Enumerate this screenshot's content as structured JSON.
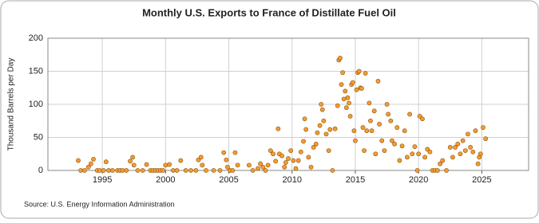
{
  "chart_data": {
    "type": "scatter",
    "title": "Monthly U.S. Exports to France of Distillate Fuel Oil",
    "y_label": "Thousand Barrels per Day",
    "source": "Source: U.S. Energy Information Administration",
    "color": "#f59c2e",
    "grid": true,
    "xlim": [
      1990.7,
      2028.7
    ],
    "xticks": [
      1995,
      2000,
      2005,
      2010,
      2015,
      2020,
      2025
    ],
    "ylim": [
      0,
      200
    ],
    "yticks": [
      0,
      50,
      100,
      150,
      200
    ],
    "x": [
      1993.1,
      1993.3,
      1993.6,
      1993.9,
      1994.1,
      1994.3,
      1994.6,
      1994.8,
      1995.1,
      1995.3,
      1995.5,
      1995.8,
      1996.2,
      1996.4,
      1996.6,
      1996.9,
      1997.2,
      1997.4,
      1997.5,
      1997.8,
      1998.2,
      1998.5,
      1998.8,
      1999.0,
      1999.2,
      1999.4,
      1999.6,
      1999.8,
      2000.0,
      2000.3,
      2000.6,
      2000.9,
      2001.2,
      2001.6,
      2002.0,
      2002.4,
      2002.6,
      2002.8,
      2002.9,
      2003.2,
      2003.8,
      2004.3,
      2004.6,
      2004.8,
      2004.9,
      2005.1,
      2005.3,
      2005.5,
      2005.7,
      2006.6,
      2006.9,
      2007.3,
      2007.5,
      2007.7,
      2007.9,
      2008.1,
      2008.3,
      2008.5,
      2008.7,
      2008.9,
      2009.0,
      2009.2,
      2009.4,
      2009.5,
      2009.7,
      2009.9,
      2010.1,
      2010.3,
      2010.5,
      2010.7,
      2010.9,
      2011.0,
      2011.1,
      2011.3,
      2011.5,
      2011.7,
      2011.9,
      2012.0,
      2012.2,
      2012.3,
      2012.4,
      2012.5,
      2012.7,
      2012.9,
      2013.0,
      2013.2,
      2013.4,
      2013.6,
      2013.7,
      2013.8,
      2013.9,
      2014.0,
      2014.1,
      2014.2,
      2014.3,
      2014.4,
      2014.5,
      2014.6,
      2014.7,
      2014.8,
      2014.9,
      2015.0,
      2015.1,
      2015.2,
      2015.3,
      2015.4,
      2015.5,
      2015.6,
      2015.7,
      2015.8,
      2015.9,
      2016.1,
      2016.2,
      2016.3,
      2016.5,
      2016.6,
      2016.8,
      2016.9,
      2017.1,
      2017.3,
      2017.5,
      2017.6,
      2017.8,
      2017.9,
      2018.1,
      2018.3,
      2018.5,
      2018.7,
      2018.9,
      2019.1,
      2019.3,
      2019.5,
      2019.7,
      2019.9,
      2020.0,
      2020.1,
      2020.3,
      2020.5,
      2020.7,
      2020.9,
      2021.1,
      2021.3,
      2021.5,
      2021.7,
      2021.9,
      2022.2,
      2022.5,
      2022.7,
      2022.9,
      2023.1,
      2023.3,
      2023.5,
      2023.7,
      2023.9,
      2024.1,
      2024.3,
      2024.5,
      2024.7,
      2024.8,
      2024.9,
      2025.1,
      2025.3
    ],
    "values": [
      15,
      0,
      0,
      5,
      10,
      17,
      0,
      0,
      0,
      13,
      0,
      0,
      0,
      0,
      0,
      0,
      14,
      20,
      8,
      0,
      0,
      9,
      0,
      0,
      0,
      0,
      0,
      0,
      8,
      9,
      0,
      0,
      15,
      0,
      0,
      0,
      16,
      20,
      8,
      0,
      0,
      0,
      27,
      16,
      5,
      0,
      0,
      27,
      8,
      8,
      0,
      3,
      10,
      5,
      0,
      8,
      30,
      25,
      14,
      63,
      25,
      22,
      5,
      12,
      18,
      30,
      15,
      3,
      15,
      28,
      44,
      78,
      62,
      20,
      5,
      35,
      40,
      57,
      68,
      100,
      92,
      75,
      55,
      30,
      62,
      0,
      63,
      98,
      167,
      170,
      130,
      148,
      108,
      120,
      95,
      110,
      102,
      82,
      130,
      133,
      60,
      45,
      122,
      148,
      150,
      125,
      124,
      65,
      30,
      147,
      60,
      102,
      75,
      60,
      90,
      25,
      135,
      70,
      45,
      30,
      100,
      85,
      75,
      45,
      40,
      65,
      15,
      37,
      60,
      20,
      85,
      25,
      36,
      0,
      25,
      82,
      78,
      20,
      32,
      28,
      0,
      0,
      0,
      10,
      15,
      0,
      35,
      20,
      35,
      40,
      25,
      45,
      30,
      55,
      35,
      28,
      60,
      10,
      20,
      25,
      65,
      48
    ]
  }
}
